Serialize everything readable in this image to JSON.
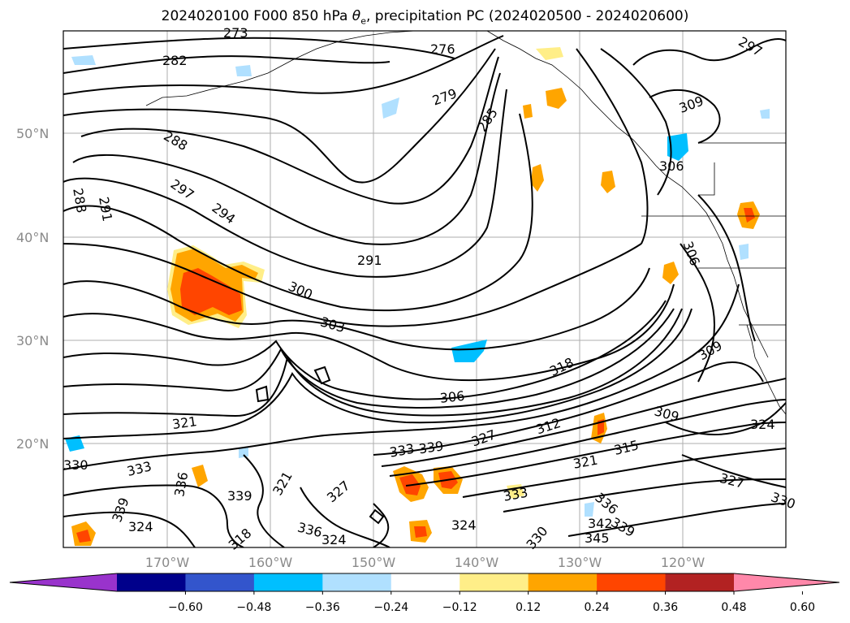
{
  "title": {
    "prefix": "2024020100 F000 850 hPa ",
    "theta": "θ",
    "theta_sub": "e",
    "suffix": ", precipitation PC (2024020500 - 2024020600)"
  },
  "axes": {
    "lat_labels": [
      "50°N",
      "40°N",
      "30°N",
      "20°N"
    ],
    "lon_labels": [
      "170°W",
      "160°W",
      "150°W",
      "140°W",
      "130°W",
      "120°W"
    ],
    "grid": true
  },
  "contour_labels": [
    "273",
    "276",
    "279",
    "282",
    "285",
    "288",
    "291",
    "294",
    "297",
    "300",
    "303",
    "306",
    "309",
    "312",
    "315",
    "318",
    "321",
    "324",
    "327",
    "330",
    "333",
    "336",
    "339",
    "342",
    "345"
  ],
  "colorbar": {
    "ticks": [
      "−0.60",
      "−0.48",
      "−0.36",
      "−0.24",
      "−0.12",
      "0.12",
      "0.24",
      "0.36",
      "0.48",
      "0.60"
    ],
    "colors": [
      "#9933cc",
      "#00008b",
      "#3355cc",
      "#00bfff",
      "#b0e0ff",
      "#ffffff",
      "#ffee88",
      "#ffa500",
      "#ff4500",
      "#b22222",
      "#ff88aa"
    ],
    "outline": "#000000"
  },
  "colors": {
    "contour": "#000000",
    "coast": "#000000",
    "grid": "#999999",
    "tick_text": "#8a8a8a",
    "positive_low": "#ffee88",
    "positive_mid": "#ffa500",
    "positive_high": "#ff4500",
    "negative_low": "#b0e0ff",
    "negative_mid": "#00bfff"
  }
}
